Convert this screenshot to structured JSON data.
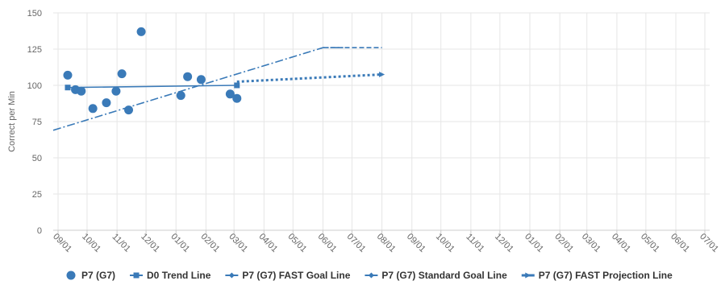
{
  "chart_data": {
    "type": "line",
    "ylabel": "Correct per Min",
    "ylim": [
      0,
      150
    ],
    "yticks": [
      0,
      25,
      50,
      75,
      100,
      125,
      150
    ],
    "x_start": "2019-08-27",
    "x_end": "2021-07-06",
    "xticks": [
      {
        "date": "2019-09-01",
        "label": "09/01"
      },
      {
        "date": "2019-10-01",
        "label": "10/01"
      },
      {
        "date": "2019-11-01",
        "label": "11/01"
      },
      {
        "date": "2019-12-01",
        "label": "12/01"
      },
      {
        "date": "2020-01-01",
        "label": "01/01"
      },
      {
        "date": "2020-02-01",
        "label": "02/01"
      },
      {
        "date": "2020-03-01",
        "label": "03/01"
      },
      {
        "date": "2020-04-01",
        "label": "04/01"
      },
      {
        "date": "2020-05-01",
        "label": "05/01"
      },
      {
        "date": "2020-06-01",
        "label": "06/01"
      },
      {
        "date": "2020-07-01",
        "label": "07/01"
      },
      {
        "date": "2020-08-01",
        "label": "08/01"
      },
      {
        "date": "2020-09-01",
        "label": "09/01"
      },
      {
        "date": "2020-10-01",
        "label": "10/01"
      },
      {
        "date": "2020-11-01",
        "label": "11/01"
      },
      {
        "date": "2020-12-01",
        "label": "12/01"
      },
      {
        "date": "2021-01-01",
        "label": "01/01"
      },
      {
        "date": "2021-02-01",
        "label": "02/01"
      },
      {
        "date": "2021-03-01",
        "label": "03/01"
      },
      {
        "date": "2021-04-01",
        "label": "04/01"
      },
      {
        "date": "2021-05-01",
        "label": "05/01"
      },
      {
        "date": "2021-06-01",
        "label": "06/01"
      },
      {
        "date": "2021-07-01",
        "label": "07/01"
      }
    ],
    "grid": true,
    "legend_position": "bottom",
    "series": [
      {
        "name": "P7 (G7)",
        "kind": "scatter",
        "marker": "circle",
        "color": "#3a7ab8",
        "points": [
          {
            "x": "2019-09-11",
            "y": 107
          },
          {
            "x": "2019-09-19",
            "y": 97
          },
          {
            "x": "2019-09-25",
            "y": 96
          },
          {
            "x": "2019-10-07",
            "y": 84
          },
          {
            "x": "2019-10-21",
            "y": 88
          },
          {
            "x": "2019-10-31",
            "y": 96
          },
          {
            "x": "2019-11-06",
            "y": 108
          },
          {
            "x": "2019-11-13",
            "y": 83
          },
          {
            "x": "2019-11-26",
            "y": 137
          },
          {
            "x": "2020-01-06",
            "y": 93
          },
          {
            "x": "2020-01-13",
            "y": 106
          },
          {
            "x": "2020-01-27",
            "y": 104
          },
          {
            "x": "2020-02-26",
            "y": 94
          },
          {
            "x": "2020-03-04",
            "y": 91
          }
        ]
      },
      {
        "name": "D0 Trend Line",
        "kind": "line",
        "marker": "square",
        "dash": "solid",
        "color": "#3a7ab8",
        "points": [
          {
            "x": "2019-09-11",
            "y": 98.5
          },
          {
            "x": "2020-03-04",
            "y": 100
          }
        ]
      },
      {
        "name": "P7 (G7) FAST Goal Line",
        "kind": "line",
        "marker": "diamond",
        "dash": "dashdot",
        "color": "#3a7ab8",
        "points": [
          {
            "x": "2019-08-27",
            "y": 69
          },
          {
            "x": "2020-06-01",
            "y": 126
          },
          {
            "x": "2020-06-22",
            "y": 126
          }
        ]
      },
      {
        "name": "P7 (G7) Standard Goal Line",
        "kind": "line",
        "marker": "diamond",
        "dash": "dash",
        "color": "#3a7ab8",
        "points": [
          {
            "x": "2020-06-01",
            "y": 126
          },
          {
            "x": "2020-08-01",
            "y": 126
          }
        ]
      },
      {
        "name": "P7 (G7) FAST Projection Line",
        "kind": "line",
        "marker": "arrow",
        "dash": "dot",
        "color": "#3a7ab8",
        "points": [
          {
            "x": "2020-03-04",
            "y": 102.5
          },
          {
            "x": "2020-08-01",
            "y": 107.5
          }
        ]
      }
    ]
  }
}
